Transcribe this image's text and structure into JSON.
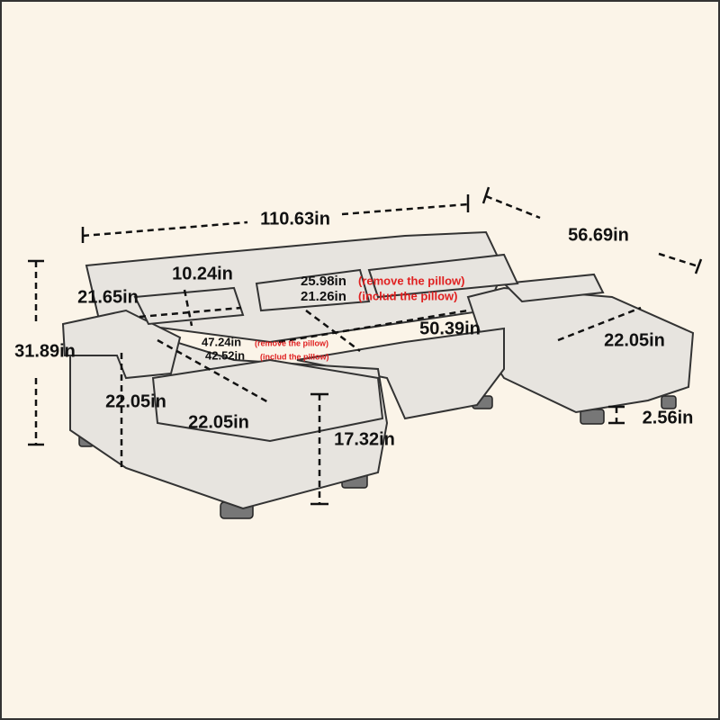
{
  "overall": {
    "width": "110.63in",
    "depth": "56.69in",
    "height": "31.89in"
  },
  "details": {
    "cushion_height": "10.24in",
    "pillow_width": "21.65in",
    "chaise_width_left": "22.05in",
    "chaise_width_front": "22.05in",
    "seat_height": "17.32in",
    "middle_length": "50.39in",
    "chaise_width_right": "22.05in",
    "leg_height": "2.56in"
  },
  "back_depth": {
    "without_pillow": "25.98in",
    "without_note": "(remove the pillow)",
    "with_pillow": "21.26in",
    "with_note": "(includ the pillow)"
  },
  "seat_depth": {
    "without_pillow": "47.24in",
    "without_note": "(remove the pillow)",
    "with_pillow": "42.52in",
    "with_note": "(includ the pillow)"
  }
}
